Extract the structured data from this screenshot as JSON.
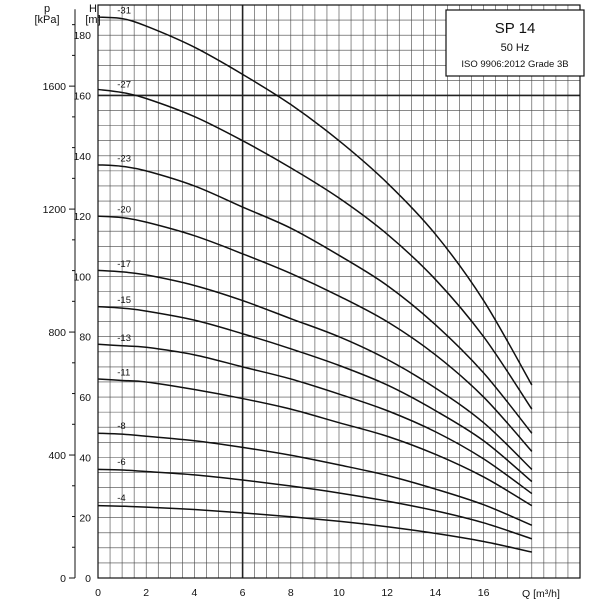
{
  "chart_data": {
    "type": "line",
    "title": "SP 14",
    "subtitle_lines": [
      "50 Hz",
      "ISO 9906:2012 Grade 3B"
    ],
    "y_axis_left_outer": {
      "label_lines": [
        "p",
        "[kPa]"
      ],
      "ticks": [
        0,
        400,
        800,
        1200,
        1600
      ],
      "tick_labels": [
        "0",
        "400",
        "800",
        "1200",
        "1600"
      ]
    },
    "y_axis_left_inner": {
      "label_lines": [
        "H",
        "[m]"
      ],
      "ticks": [
        0,
        20,
        40,
        60,
        80,
        100,
        120,
        140,
        160,
        180
      ],
      "tick_labels": [
        "0",
        "20",
        "40",
        "60",
        "80",
        "100",
        "120",
        "140",
        "160",
        "180"
      ]
    },
    "x_axis": {
      "label": "Q [m³/h]",
      "ticks": [
        0,
        2,
        4,
        6,
        8,
        10,
        12,
        14,
        16
      ],
      "tick_labels": [
        "0",
        "2",
        "4",
        "6",
        "8",
        "10",
        "12",
        "14",
        "16"
      ]
    },
    "xlim": [
      0,
      20
    ],
    "ylim": [
      0,
      190
    ],
    "grid": true,
    "series": [
      {
        "name": "-31",
        "x": [
          0,
          1,
          2,
          4,
          6,
          8,
          10,
          12,
          14,
          16,
          18
        ],
        "y": [
          186,
          185.5,
          183,
          176,
          167,
          157,
          145,
          131,
          114,
          92,
          64
        ]
      },
      {
        "name": "-27",
        "x": [
          0,
          1,
          2,
          4,
          6,
          8,
          10,
          12,
          14,
          16,
          18
        ],
        "y": [
          162,
          161,
          159,
          153,
          145,
          136,
          126,
          114,
          99,
          80,
          56
        ]
      },
      {
        "name": "-23",
        "x": [
          0,
          1,
          2,
          4,
          6,
          8,
          10,
          12,
          14,
          16,
          18
        ],
        "y": [
          137,
          136.5,
          135,
          130,
          123,
          116,
          107,
          97,
          84,
          68,
          48
        ]
      },
      {
        "name": "-20",
        "x": [
          0,
          1,
          2,
          4,
          6,
          8,
          10,
          12,
          14,
          16,
          18
        ],
        "y": [
          120,
          119.5,
          118,
          113.5,
          107.5,
          101,
          93.5,
          85,
          74,
          60,
          42
        ]
      },
      {
        "name": "-17",
        "x": [
          0,
          1,
          2,
          4,
          6,
          8,
          10,
          12,
          14,
          16,
          18
        ],
        "y": [
          102,
          101.5,
          100.5,
          97,
          92,
          86,
          80,
          72.5,
          63,
          51.5,
          36
        ]
      },
      {
        "name": "-15",
        "x": [
          0,
          1,
          2,
          4,
          6,
          8,
          10,
          12,
          14,
          16,
          18
        ],
        "y": [
          90,
          89.5,
          88.5,
          85.5,
          81,
          76,
          70.5,
          64,
          55.5,
          45.5,
          32
        ]
      },
      {
        "name": "-13",
        "x": [
          0,
          1,
          2,
          4,
          6,
          8,
          10,
          12,
          14,
          16,
          18
        ],
        "y": [
          77.5,
          77,
          76.5,
          74,
          70,
          66,
          61,
          55.5,
          48.5,
          39.5,
          28
        ]
      },
      {
        "name": "-11",
        "x": [
          0,
          1,
          2,
          4,
          6,
          8,
          10,
          12,
          14,
          16,
          18
        ],
        "y": [
          66,
          65.5,
          65,
          62.5,
          59.5,
          56,
          51.5,
          47,
          41,
          33.5,
          24
        ]
      },
      {
        "name": "-8",
        "x": [
          0,
          1,
          2,
          4,
          6,
          8,
          10,
          12,
          14,
          16,
          18
        ],
        "y": [
          48,
          47.7,
          47,
          45.5,
          43.3,
          40.7,
          37.5,
          34,
          29.5,
          24.3,
          17.5
        ]
      },
      {
        "name": "-6",
        "x": [
          0,
          1,
          2,
          4,
          6,
          8,
          10,
          12,
          14,
          16,
          18
        ],
        "y": [
          36,
          35.8,
          35.3,
          34.2,
          32.5,
          30.5,
          28.2,
          25.5,
          22.3,
          18.3,
          13
        ]
      },
      {
        "name": "-4",
        "x": [
          0,
          1,
          2,
          4,
          6,
          8,
          10,
          12,
          14,
          16,
          18
        ],
        "y": [
          24,
          23.8,
          23.5,
          22.7,
          21.6,
          20.3,
          18.8,
          17,
          14.8,
          12.1,
          8.6
        ]
      }
    ]
  }
}
